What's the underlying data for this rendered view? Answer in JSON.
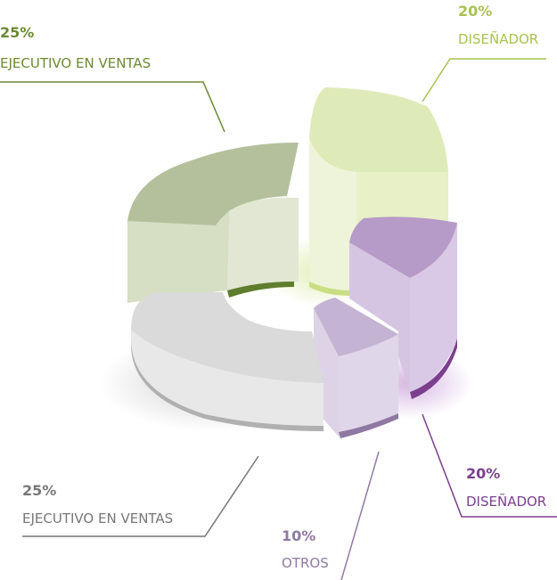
{
  "chart_data": {
    "type": "pie",
    "variant": "3d-exploded-donut",
    "categories": [
      "EJECUTIVO EN VENTAS",
      "DISEÑADOR",
      "DISEÑADOR",
      "OTROS",
      "EJECUTIVO EN VENTAS"
    ],
    "values": [
      25,
      20,
      20,
      10,
      25
    ],
    "percent_labels": [
      "25%",
      "20%",
      "20%",
      "10%",
      "25%"
    ],
    "colors": [
      "#6a8a32",
      "#a7c24f",
      "#7b3f8e",
      "#8f79a3",
      "#777777"
    ],
    "legend": "callout labels with leader lines"
  }
}
